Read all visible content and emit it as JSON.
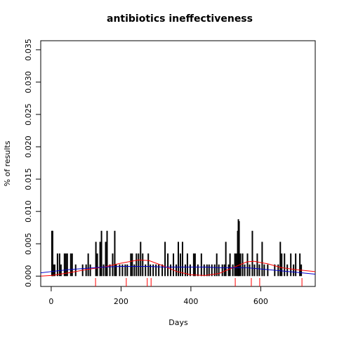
{
  "chart_data": {
    "type": "spike",
    "title": "antibiotics ineffectiveness",
    "xlabel": "Days",
    "ylabel": "% of results",
    "color": "#000000",
    "xlim": [
      -30,
      756
    ],
    "ylim": [
      -0.0016,
      0.0364
    ],
    "xticks": [
      0,
      200,
      400,
      600
    ],
    "yticks": [
      {
        "value": 0,
        "label": "0.000"
      },
      0.005,
      {
        "value": 0.01,
        "label": "0.010"
      },
      0.015,
      {
        "value": 0.02,
        "label": "0.020"
      },
      0.025,
      {
        "value": 0.03,
        "label": "0.030"
      },
      0.035
    ],
    "x": [
      2,
      4,
      6,
      10,
      18,
      24,
      28,
      38,
      42,
      46,
      56,
      60,
      70,
      90,
      100,
      106,
      112,
      128,
      132,
      140,
      144,
      150,
      156,
      160,
      168,
      176,
      182,
      186,
      196,
      204,
      212,
      218,
      228,
      232,
      238,
      244,
      250,
      256,
      262,
      270,
      278,
      284,
      292,
      300,
      308,
      318,
      326,
      334,
      342,
      350,
      358,
      364,
      370,
      376,
      384,
      390,
      398,
      408,
      412,
      420,
      430,
      438,
      446,
      452,
      460,
      468,
      474,
      480,
      490,
      496,
      500,
      508,
      512,
      520,
      526,
      530,
      534,
      536,
      538,
      542,
      548,
      554,
      562,
      568,
      576,
      582,
      590,
      596,
      604,
      610,
      620,
      640,
      650,
      656,
      660,
      668,
      676,
      686,
      694,
      700,
      712,
      716
    ],
    "values": [
      0.007,
      0.007,
      0.0018,
      0.0018,
      0.0035,
      0.0035,
      0.0018,
      0.0035,
      0.0035,
      0.0035,
      0.0035,
      0.0035,
      0.0018,
      0.0018,
      0.0018,
      0.0035,
      0.0018,
      0.0053,
      0.0035,
      0.0053,
      0.007,
      0.0018,
      0.0053,
      0.007,
      0.0018,
      0.0035,
      0.007,
      0.0018,
      0.0018,
      0.0018,
      0.0018,
      0.0018,
      0.0035,
      0.0035,
      0.0018,
      0.0035,
      0.0035,
      0.0053,
      0.0035,
      0.0018,
      0.0035,
      0.0018,
      0.0018,
      0.0018,
      0.0018,
      0.0018,
      0.0053,
      0.0035,
      0.0018,
      0.0035,
      0.0018,
      0.0053,
      0.0035,
      0.0053,
      0.0018,
      0.0035,
      0.0018,
      0.0035,
      0.0035,
      0.0018,
      0.0035,
      0.0018,
      0.0018,
      0.0018,
      0.0018,
      0.0018,
      0.0035,
      0.0018,
      0.0018,
      0.0018,
      0.0053,
      0.0018,
      0.0035,
      0.0018,
      0.0035,
      0.0035,
      0.007,
      0.0088,
      0.0085,
      0.0035,
      0.0035,
      0.0018,
      0.0035,
      0.0018,
      0.007,
      0.0018,
      0.0035,
      0.0018,
      0.0053,
      0.0018,
      0.0018,
      0.0018,
      0.0018,
      0.0053,
      0.0035,
      0.0035,
      0.0018,
      0.0035,
      0.0018,
      0.0035,
      0.0035,
      0.0018
    ],
    "curves": [
      {
        "color": "#ff0000",
        "x": [
          -30,
          0,
          50,
          100,
          150,
          200,
          250,
          280,
          320,
          360,
          400,
          440,
          480,
          520,
          560,
          580,
          620,
          660,
          700,
          756
        ],
        "values": [
          0,
          0.0001,
          0.0005,
          0.001,
          0.0014,
          0.002,
          0.0025,
          0.0024,
          0.0016,
          0.0007,
          0.0002,
          0.0001,
          0.0004,
          0.0013,
          0.0022,
          0.0023,
          0.0019,
          0.0013,
          0.001,
          0.0007
        ]
      },
      {
        "color": "#0000cc",
        "x": [
          -30,
          0,
          50,
          100,
          150,
          200,
          250,
          280,
          320,
          360,
          400,
          440,
          480,
          520,
          560,
          580,
          620,
          660,
          700,
          756
        ],
        "values": [
          0.0005,
          0.0007,
          0.001,
          0.0012,
          0.0014,
          0.0015,
          0.0015,
          0.0015,
          0.0014,
          0.0014,
          0.0014,
          0.0014,
          0.0013,
          0.0013,
          0.0013,
          0.0012,
          0.001,
          0.0008,
          0.0006,
          0.0003
        ]
      }
    ],
    "rug": {
      "color": "#ff0000",
      "x": [
        127,
        215,
        275,
        286,
        527,
        573,
        597,
        718
      ]
    }
  }
}
